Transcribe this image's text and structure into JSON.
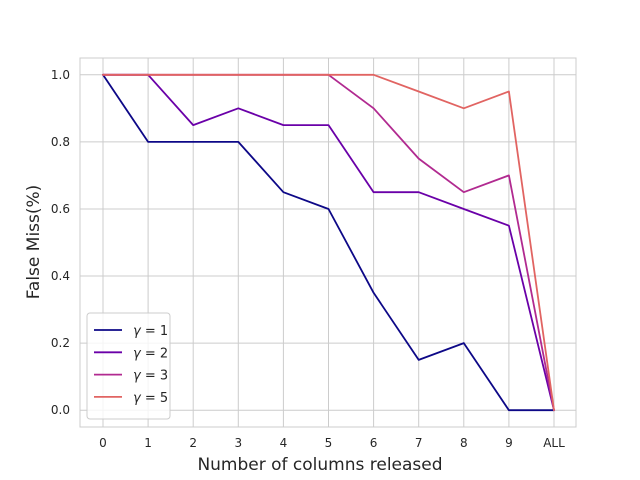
{
  "chart_data": {
    "type": "line",
    "xlabel": "Number of columns released",
    "ylabel": "False Miss(%)",
    "categories": [
      "0",
      "1",
      "2",
      "3",
      "4",
      "5",
      "6",
      "7",
      "8",
      "9",
      "ALL"
    ],
    "yticks": [
      "0.0",
      "0.2",
      "0.4",
      "0.6",
      "0.8",
      "1.0"
    ],
    "ylim": [
      -0.05,
      1.05
    ],
    "grid": true,
    "legend_position": "lower-left",
    "series": [
      {
        "name": "γ = 1",
        "greek": "γ",
        "value_text": "= 1",
        "color": "#0d0887",
        "values": [
          1.0,
          0.8,
          0.8,
          0.8,
          0.65,
          0.6,
          0.35,
          0.15,
          0.2,
          0.0,
          0.0
        ]
      },
      {
        "name": "γ = 2",
        "greek": "γ",
        "value_text": "= 2",
        "color": "#6a00a8",
        "values": [
          1.0,
          1.0,
          0.85,
          0.9,
          0.85,
          0.85,
          0.65,
          0.65,
          0.6,
          0.55,
          0.0
        ]
      },
      {
        "name": "γ = 3",
        "greek": "γ",
        "value_text": "= 3",
        "color": "#b12a90",
        "values": [
          1.0,
          1.0,
          1.0,
          1.0,
          1.0,
          1.0,
          0.9,
          0.75,
          0.65,
          0.7,
          0.0
        ]
      },
      {
        "name": "γ = 5",
        "greek": "γ",
        "value_text": "= 5",
        "color": "#e16462",
        "values": [
          1.0,
          1.0,
          1.0,
          1.0,
          1.0,
          1.0,
          1.0,
          0.95,
          0.9,
          0.95,
          0.0
        ]
      }
    ]
  }
}
